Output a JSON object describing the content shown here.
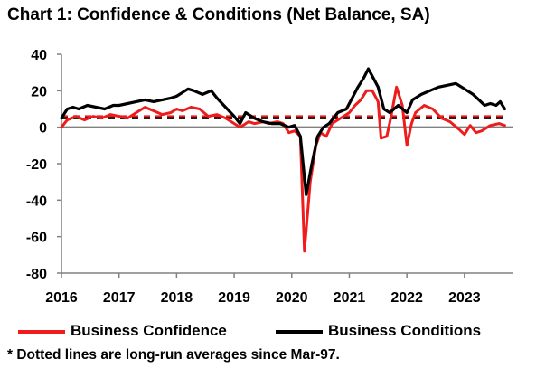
{
  "title": "Chart 1: Confidence & Conditions (Net Balance, SA)",
  "footnote": "* Dotted lines are long-run averages since Mar-97.",
  "colors": {
    "confidence": "#ee1c1c",
    "conditions": "#000000",
    "zero_line": "#808080",
    "axis": "#808080"
  },
  "chart_data": {
    "type": "line",
    "title": "Chart 1: Confidence & Conditions (Net Balance, SA)",
    "ylim": [
      -80,
      40
    ],
    "yticks": [
      40,
      20,
      0,
      -20,
      -40,
      -60,
      -80
    ],
    "xlim": [
      2016.0,
      2023.85
    ],
    "xticks": [
      {
        "label": "2016",
        "x": 2016.0
      },
      {
        "label": "2017",
        "x": 2017.0
      },
      {
        "label": "2018",
        "x": 2018.0
      },
      {
        "label": "2019",
        "x": 2019.0
      },
      {
        "label": "2020",
        "x": 2020.0
      },
      {
        "label": "2021",
        "x": 2021.0
      },
      {
        "label": "2022",
        "x": 2022.0
      },
      {
        "label": "2023",
        "x": 2023.0
      }
    ],
    "grid": false,
    "legend_position": "bottom",
    "series": [
      {
        "name": "Business Confidence",
        "color": "#ee1c1c",
        "points": [
          [
            2016.0,
            0
          ],
          [
            2016.1,
            4
          ],
          [
            2016.25,
            6
          ],
          [
            2016.4,
            4
          ],
          [
            2016.55,
            6
          ],
          [
            2016.7,
            5
          ],
          [
            2016.85,
            7
          ],
          [
            2017.0,
            6
          ],
          [
            2017.15,
            5
          ],
          [
            2017.3,
            8
          ],
          [
            2017.45,
            11
          ],
          [
            2017.6,
            9
          ],
          [
            2017.75,
            7
          ],
          [
            2017.9,
            8
          ],
          [
            2018.0,
            10
          ],
          [
            2018.1,
            9
          ],
          [
            2018.25,
            11
          ],
          [
            2018.4,
            10
          ],
          [
            2018.55,
            6
          ],
          [
            2018.7,
            7
          ],
          [
            2018.85,
            5
          ],
          [
            2019.0,
            2
          ],
          [
            2019.1,
            0
          ],
          [
            2019.25,
            3
          ],
          [
            2019.35,
            2
          ],
          [
            2019.5,
            3
          ],
          [
            2019.6,
            2
          ],
          [
            2019.75,
            3
          ],
          [
            2019.85,
            2
          ],
          [
            2019.95,
            -3
          ],
          [
            2020.05,
            -2
          ],
          [
            2020.15,
            -5
          ],
          [
            2020.22,
            -68
          ],
          [
            2020.32,
            -30
          ],
          [
            2020.42,
            -10
          ],
          [
            2020.5,
            -3
          ],
          [
            2020.6,
            -5
          ],
          [
            2020.7,
            2
          ],
          [
            2020.8,
            4
          ],
          [
            2020.9,
            6
          ],
          [
            2021.0,
            8
          ],
          [
            2021.1,
            12
          ],
          [
            2021.2,
            15
          ],
          [
            2021.3,
            20
          ],
          [
            2021.4,
            20
          ],
          [
            2021.5,
            14
          ],
          [
            2021.55,
            -6
          ],
          [
            2021.65,
            -5
          ],
          [
            2021.72,
            5
          ],
          [
            2021.82,
            22
          ],
          [
            2021.92,
            12
          ],
          [
            2022.0,
            -10
          ],
          [
            2022.08,
            2
          ],
          [
            2022.15,
            8
          ],
          [
            2022.3,
            12
          ],
          [
            2022.45,
            10
          ],
          [
            2022.6,
            5
          ],
          [
            2022.75,
            3
          ],
          [
            2022.9,
            -1
          ],
          [
            2023.0,
            -4
          ],
          [
            2023.1,
            1
          ],
          [
            2023.2,
            -3
          ],
          [
            2023.3,
            -2
          ],
          [
            2023.45,
            1
          ],
          [
            2023.6,
            2
          ],
          [
            2023.7,
            1
          ]
        ]
      },
      {
        "name": "Business Conditions",
        "color": "#000000",
        "points": [
          [
            2016.0,
            5
          ],
          [
            2016.1,
            10
          ],
          [
            2016.2,
            11
          ],
          [
            2016.3,
            10
          ],
          [
            2016.45,
            12
          ],
          [
            2016.6,
            11
          ],
          [
            2016.75,
            10
          ],
          [
            2016.9,
            12
          ],
          [
            2017.0,
            12
          ],
          [
            2017.15,
            13
          ],
          [
            2017.3,
            14
          ],
          [
            2017.45,
            15
          ],
          [
            2017.6,
            14
          ],
          [
            2017.75,
            15
          ],
          [
            2017.9,
            16
          ],
          [
            2018.0,
            17
          ],
          [
            2018.1,
            19
          ],
          [
            2018.2,
            21
          ],
          [
            2018.3,
            20
          ],
          [
            2018.45,
            18
          ],
          [
            2018.6,
            20
          ],
          [
            2018.7,
            16
          ],
          [
            2018.85,
            11
          ],
          [
            2019.0,
            6
          ],
          [
            2019.1,
            2
          ],
          [
            2019.2,
            8
          ],
          [
            2019.35,
            5
          ],
          [
            2019.5,
            3
          ],
          [
            2019.65,
            2
          ],
          [
            2019.8,
            2
          ],
          [
            2019.95,
            0
          ],
          [
            2020.05,
            1
          ],
          [
            2020.15,
            -5
          ],
          [
            2020.25,
            -37
          ],
          [
            2020.35,
            -20
          ],
          [
            2020.45,
            -5
          ],
          [
            2020.55,
            0
          ],
          [
            2020.65,
            2
          ],
          [
            2020.8,
            8
          ],
          [
            2020.95,
            10
          ],
          [
            2021.05,
            16
          ],
          [
            2021.15,
            22
          ],
          [
            2021.25,
            27
          ],
          [
            2021.33,
            32
          ],
          [
            2021.4,
            28
          ],
          [
            2021.5,
            22
          ],
          [
            2021.6,
            10
          ],
          [
            2021.7,
            8
          ],
          [
            2021.85,
            12
          ],
          [
            2022.0,
            8
          ],
          [
            2022.1,
            15
          ],
          [
            2022.25,
            18
          ],
          [
            2022.4,
            20
          ],
          [
            2022.55,
            22
          ],
          [
            2022.7,
            23
          ],
          [
            2022.85,
            24
          ],
          [
            2022.95,
            22
          ],
          [
            2023.05,
            20
          ],
          [
            2023.15,
            18
          ],
          [
            2023.25,
            15
          ],
          [
            2023.35,
            12
          ],
          [
            2023.45,
            13
          ],
          [
            2023.55,
            12
          ],
          [
            2023.62,
            14
          ],
          [
            2023.7,
            10
          ]
        ]
      }
    ],
    "reference_lines": [
      {
        "series": "Business Confidence",
        "value": 6,
        "style": "dashed",
        "color": "#ee1c1c"
      },
      {
        "series": "Business Conditions",
        "value": 5,
        "style": "dashed",
        "color": "#000000"
      }
    ]
  },
  "legend": {
    "confidence_label": "Business Confidence",
    "conditions_label": "Business Conditions"
  }
}
